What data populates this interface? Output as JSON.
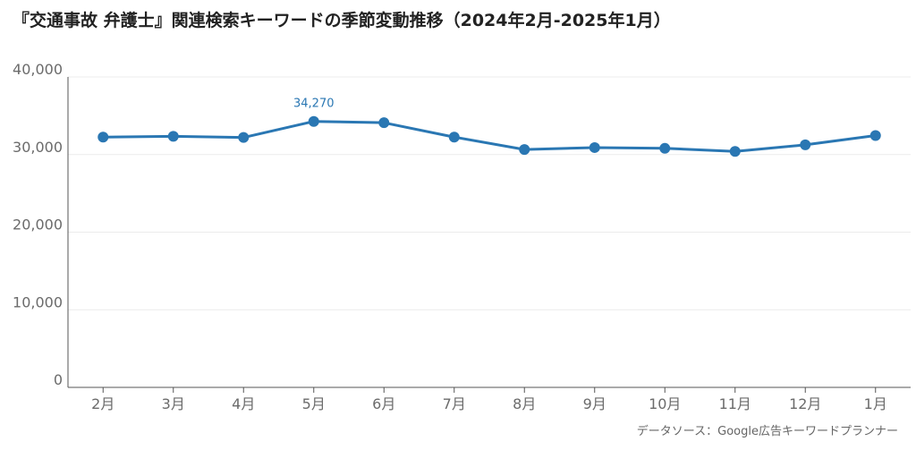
{
  "title": "『交通事故 弁護士』関連検索キーワードの季節変動推移（2024年2月-2025年1月）",
  "source": "データソース：Google広告キーワードプランナー",
  "colors": {
    "series": "#2a77b3",
    "grid": "#ececec",
    "axis": "#555555"
  },
  "chart_data": {
    "type": "line",
    "title": "『交通事故 弁護士』関連検索キーワードの季節変動推移（2024年2月-2025年1月）",
    "xlabel": "",
    "ylabel": "",
    "categories": [
      "2月",
      "3月",
      "4月",
      "5月",
      "6月",
      "7月",
      "8月",
      "9月",
      "10月",
      "11月",
      "12月",
      "1月"
    ],
    "series": [
      {
        "values": [
          32250,
          32350,
          32200,
          34270,
          34100,
          32250,
          30650,
          30900,
          30800,
          30400,
          31250,
          32450
        ]
      }
    ],
    "ylim": [
      0,
      40000
    ],
    "yticks": [
      0,
      10000,
      20000,
      30000,
      40000
    ],
    "ytick_labels": [
      "0",
      "10,000",
      "20,000",
      "30,000",
      "40,000"
    ],
    "data_labels": [
      {
        "index": 3,
        "text": "34,270"
      }
    ],
    "grid": true,
    "legend": "none"
  }
}
